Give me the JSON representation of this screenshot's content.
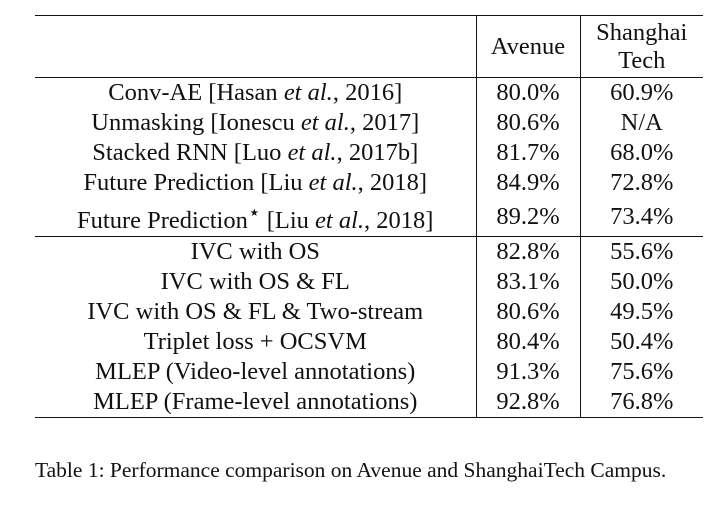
{
  "table": {
    "headers": {
      "method": "",
      "avenue": "Avenue",
      "shanghaitech_line1": "Shanghai",
      "shanghaitech_line2": "Tech"
    },
    "rows": [
      {
        "pre": "Conv-AE [Hasan ",
        "etal": "et al.",
        "post": ", 2016]",
        "avenue": "80.0%",
        "shanghaitech": "60.9%"
      },
      {
        "pre": "Unmasking [Ionescu ",
        "etal": "et al.",
        "post": ", 2017]",
        "avenue": "80.6%",
        "shanghaitech": "N/A"
      },
      {
        "pre": "Stacked RNN [Luo ",
        "etal": "et al.",
        "post": ", 2017b]",
        "avenue": "81.7%",
        "shanghaitech": "68.0%"
      },
      {
        "pre": "Future Prediction [Liu ",
        "etal": "et al.",
        "post": ", 2018]",
        "avenue": "84.9%",
        "shanghaitech": "72.8%"
      },
      {
        "pre": "Future Prediction",
        "star": "⋆",
        "pre2": " [Liu ",
        "etal": "et al.",
        "post": ", 2018]",
        "avenue": "89.2%",
        "shanghaitech": "73.4%"
      },
      {
        "method": "IVC with OS",
        "avenue": "82.8%",
        "shanghaitech": "55.6%"
      },
      {
        "method": "IVC with OS & FL",
        "avenue": "83.1%",
        "shanghaitech": "50.0%"
      },
      {
        "method": "IVC with OS & FL & Two-stream",
        "avenue": "80.6%",
        "shanghaitech": "49.5%"
      },
      {
        "method": "Triplet loss + OCSVM",
        "avenue": "80.4%",
        "shanghaitech": "50.4%"
      },
      {
        "method": "MLEP (Video-level annotations)",
        "avenue": "91.3%",
        "shanghaitech": "75.6%"
      },
      {
        "method": "MLEP (Frame-level annotations)",
        "avenue": "92.8%",
        "shanghaitech": "76.8%"
      }
    ]
  },
  "caption": "Table 1: Performance comparison on Avenue and ShanghaiTech Campus."
}
